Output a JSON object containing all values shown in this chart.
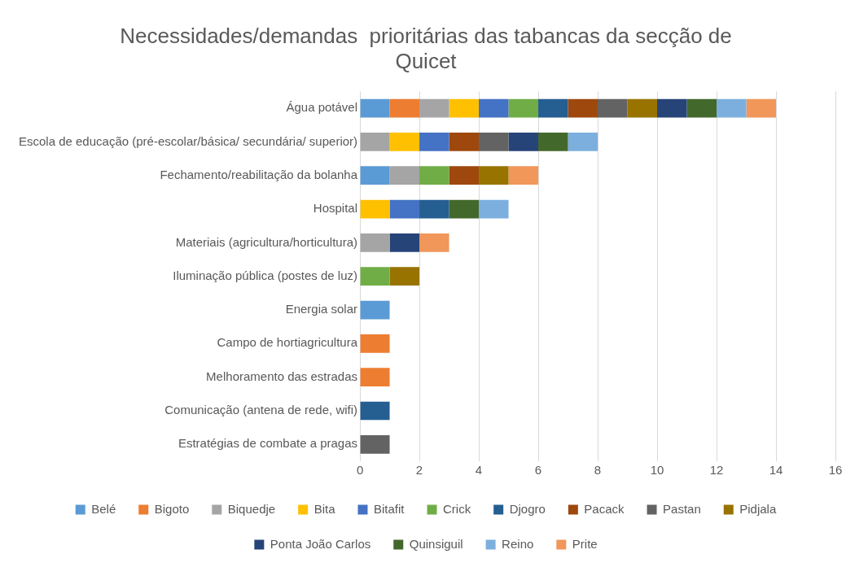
{
  "chart_data": {
    "type": "bar",
    "orientation": "horizontal",
    "stacked": true,
    "title": "Necessidades/demandas  prioritárias das tabancas da secção de Quicet",
    "categories": [
      "Água potável",
      "Escola de educação (pré-escolar/básica/ secundária/ superior)",
      "Fechamento/reabilitação da bolanha",
      "Hospital",
      "Materiais (agricultura/horticultura)",
      "Iluminação pública (postes de luz)",
      "Energia solar",
      "Campo de hortiagricultura",
      "Melhoramento das estradas",
      "Comunicação (antena de rede, wifi)",
      "Estratégias de combate a pragas"
    ],
    "series": [
      {
        "name": "Belé",
        "color": "#5b9bd5",
        "values": [
          1,
          null,
          1,
          null,
          null,
          null,
          1,
          null,
          null,
          null,
          null
        ]
      },
      {
        "name": "Bigoto",
        "color": "#ed7d31",
        "values": [
          1,
          null,
          null,
          null,
          null,
          null,
          null,
          1,
          1,
          null,
          null
        ]
      },
      {
        "name": "Biquedje",
        "color": "#a5a5a5",
        "values": [
          1,
          1,
          1,
          null,
          1,
          null,
          null,
          null,
          null,
          null,
          null
        ]
      },
      {
        "name": "Bita",
        "color": "#ffc000",
        "values": [
          1,
          1,
          null,
          1,
          null,
          null,
          null,
          null,
          null,
          null,
          null
        ]
      },
      {
        "name": "Bitafit",
        "color": "#4472c4",
        "values": [
          1,
          1,
          null,
          1,
          null,
          null,
          null,
          null,
          null,
          null,
          null
        ]
      },
      {
        "name": "Crick",
        "color": "#70ad47",
        "values": [
          1,
          null,
          1,
          null,
          null,
          1,
          null,
          null,
          null,
          null,
          null
        ]
      },
      {
        "name": "Djogro",
        "color": "#255e91",
        "values": [
          1,
          null,
          null,
          1,
          null,
          null,
          null,
          null,
          null,
          1,
          null
        ]
      },
      {
        "name": "Pacack",
        "color": "#9e480e",
        "values": [
          1,
          1,
          1,
          null,
          null,
          null,
          null,
          null,
          null,
          null,
          null
        ]
      },
      {
        "name": "Pastan",
        "color": "#636363",
        "values": [
          1,
          1,
          null,
          null,
          null,
          null,
          null,
          null,
          null,
          null,
          1
        ]
      },
      {
        "name": "Pidjala",
        "color": "#997300",
        "values": [
          1,
          null,
          1,
          null,
          null,
          1,
          null,
          null,
          null,
          null,
          null
        ]
      },
      {
        "name": "Ponta João Carlos",
        "color": "#264478",
        "values": [
          1,
          1,
          null,
          null,
          1,
          null,
          null,
          null,
          null,
          null,
          null
        ]
      },
      {
        "name": "Quinsiguil",
        "color": "#43682b",
        "values": [
          1,
          1,
          null,
          1,
          null,
          null,
          null,
          null,
          null,
          null,
          null
        ]
      },
      {
        "name": "Reino",
        "color": "#7cafdd",
        "values": [
          1,
          1,
          null,
          1,
          null,
          null,
          null,
          null,
          null,
          null,
          null
        ]
      },
      {
        "name": "Prite",
        "color": "#f1975a",
        "values": [
          1,
          null,
          1,
          null,
          1,
          null,
          null,
          null,
          null,
          null,
          null
        ]
      }
    ],
    "xlim": [
      0,
      16
    ],
    "xticks": [
      0,
      2,
      4,
      6,
      8,
      10,
      12,
      14,
      16
    ],
    "grid": "x",
    "legend": "bottom"
  }
}
